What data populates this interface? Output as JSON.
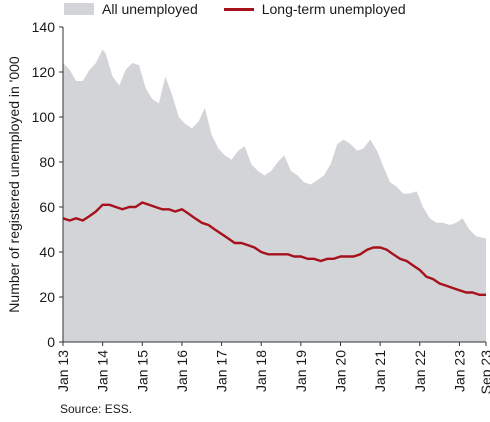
{
  "legend": {
    "all_label": "All unemployed",
    "lt_label": "Long-term unemployed"
  },
  "source": "Source: ESS.",
  "colors": {
    "all": "#d2d4d7",
    "long_term": "#a6111c",
    "axis": "#333333"
  },
  "chart_data": {
    "type": "area",
    "ylabel": "Number of registered unemployed in '000",
    "xlabel": "",
    "ylim": [
      0,
      140
    ],
    "yticks": [
      0,
      20,
      40,
      60,
      80,
      100,
      120,
      140
    ],
    "xticks": [
      "Jan 13",
      "Jan 14",
      "Jan 15",
      "Jan 16",
      "Jan 17",
      "Jan 18",
      "Jan 19",
      "Jan 20",
      "Jan 21",
      "Jan 22",
      "Jan 23",
      "Sep 23"
    ],
    "grid": false,
    "legend_position": "top",
    "series": [
      {
        "name": "All unemployed",
        "type": "area",
        "x": [
          2013.0,
          2013.17,
          2013.33,
          2013.5,
          2013.67,
          2013.83,
          2014.0,
          2014.08,
          2014.25,
          2014.42,
          2014.58,
          2014.75,
          2014.92,
          2015.08,
          2015.25,
          2015.42,
          2015.58,
          2015.75,
          2015.92,
          2016.08,
          2016.25,
          2016.42,
          2016.58,
          2016.75,
          2016.92,
          2017.08,
          2017.25,
          2017.42,
          2017.58,
          2017.75,
          2017.92,
          2018.08,
          2018.25,
          2018.42,
          2018.58,
          2018.75,
          2018.92,
          2019.08,
          2019.25,
          2019.42,
          2019.58,
          2019.75,
          2019.92,
          2020.08,
          2020.25,
          2020.42,
          2020.58,
          2020.75,
          2020.92,
          2021.08,
          2021.25,
          2021.42,
          2021.58,
          2021.75,
          2021.92,
          2022.08,
          2022.25,
          2022.42,
          2022.58,
          2022.75,
          2022.92,
          2023.08,
          2023.25,
          2023.42,
          2023.67
        ],
        "values": [
          124,
          121,
          116,
          116,
          121,
          124,
          130,
          128,
          118,
          114,
          121,
          124,
          123,
          113,
          108,
          106,
          118,
          110,
          100,
          97,
          95,
          98,
          104,
          92,
          86,
          83,
          81,
          85,
          87,
          79,
          76,
          74,
          76,
          80,
          83,
          76,
          74,
          71,
          70,
          72,
          74,
          79,
          88,
          90,
          88,
          85,
          86,
          90,
          85,
          78,
          71,
          69,
          66,
          66,
          67,
          60,
          55,
          53,
          53,
          52,
          53,
          55,
          50,
          47,
          46
        ]
      },
      {
        "name": "Long-term unemployed",
        "type": "line",
        "x": [
          2013.0,
          2013.17,
          2013.33,
          2013.5,
          2013.67,
          2013.83,
          2014.0,
          2014.17,
          2014.33,
          2014.5,
          2014.67,
          2014.83,
          2015.0,
          2015.17,
          2015.33,
          2015.5,
          2015.67,
          2015.83,
          2016.0,
          2016.17,
          2016.33,
          2016.5,
          2016.67,
          2016.83,
          2017.0,
          2017.17,
          2017.33,
          2017.5,
          2017.67,
          2017.83,
          2018.0,
          2018.17,
          2018.33,
          2018.5,
          2018.67,
          2018.83,
          2019.0,
          2019.17,
          2019.33,
          2019.5,
          2019.67,
          2019.83,
          2020.0,
          2020.17,
          2020.33,
          2020.5,
          2020.67,
          2020.83,
          2021.0,
          2021.17,
          2021.33,
          2021.5,
          2021.67,
          2021.83,
          2022.0,
          2022.17,
          2022.33,
          2022.5,
          2022.67,
          2022.83,
          2023.0,
          2023.17,
          2023.33,
          2023.5,
          2023.67
        ],
        "values": [
          55,
          54,
          55,
          54,
          56,
          58,
          61,
          61,
          60,
          59,
          60,
          60,
          62,
          61,
          60,
          59,
          59,
          58,
          59,
          57,
          55,
          53,
          52,
          50,
          48,
          46,
          44,
          44,
          43,
          42,
          40,
          39,
          39,
          39,
          39,
          38,
          38,
          37,
          37,
          36,
          37,
          37,
          38,
          38,
          38,
          39,
          41,
          42,
          42,
          41,
          39,
          37,
          36,
          34,
          32,
          29,
          28,
          26,
          25,
          24,
          23,
          22,
          22,
          21,
          21
        ]
      }
    ]
  }
}
